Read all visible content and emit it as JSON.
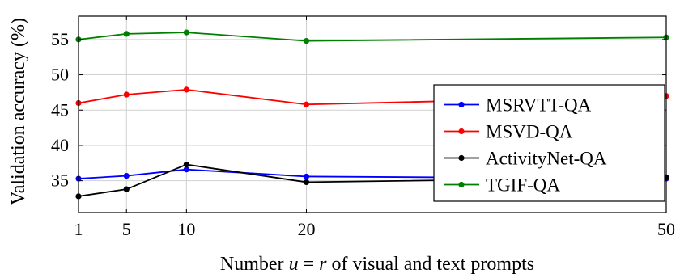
{
  "chart_data": {
    "type": "line",
    "xlabel_prefix": "Number ",
    "xlabel_u": "u",
    "xlabel_eq": " = ",
    "xlabel_r": "r",
    "xlabel_suffix": " of visual and text prompts",
    "ylabel": "Validation accuracy (%)",
    "x": [
      1,
      5,
      10,
      20,
      50
    ],
    "x_ticks": [
      "1",
      "5",
      "10",
      "20",
      "50"
    ],
    "xlim": [
      1,
      50
    ],
    "y_ticks": [
      "35",
      "40",
      "45",
      "50",
      "55"
    ],
    "y_tick_values": [
      35,
      40,
      45,
      50,
      55
    ],
    "ylim": [
      30.5,
      58.3
    ],
    "grid": true,
    "legend_position": "right",
    "series": [
      {
        "name": "MSRVTT-QA",
        "color": "#0000ff",
        "values": [
          35.3,
          35.7,
          36.6,
          35.6,
          35.3
        ]
      },
      {
        "name": "MSVD-QA",
        "color": "#ff0000",
        "values": [
          46.0,
          47.2,
          47.9,
          45.8,
          47.0
        ]
      },
      {
        "name": "ActivityNet-QA",
        "color": "#000000",
        "values": [
          32.8,
          33.8,
          37.3,
          34.8,
          35.5
        ]
      },
      {
        "name": "TGIF-QA",
        "color": "#007f00",
        "values": [
          55.0,
          55.8,
          56.0,
          54.8,
          55.3
        ]
      }
    ]
  }
}
